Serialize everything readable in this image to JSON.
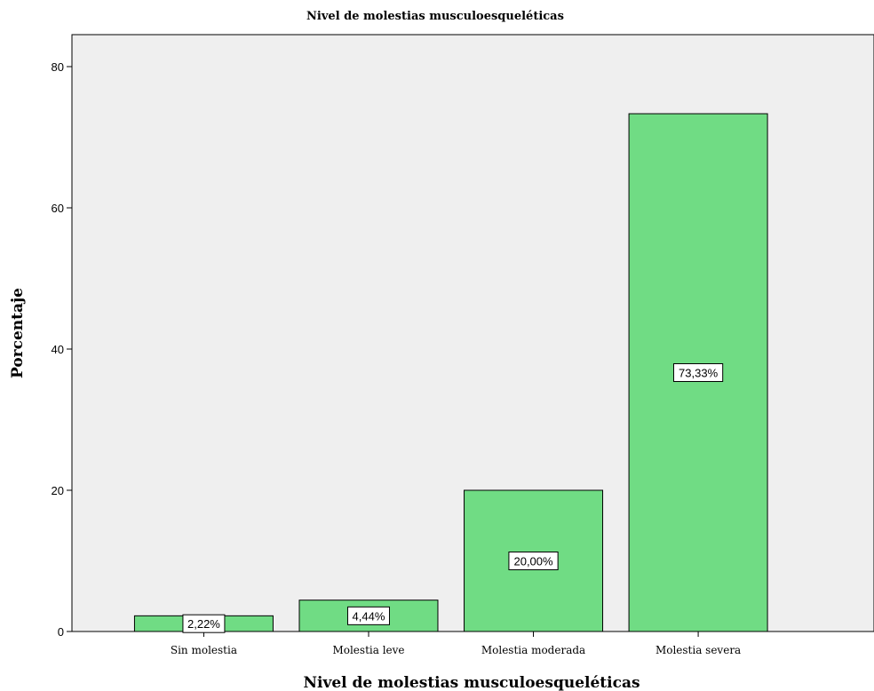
{
  "chart_data": {
    "type": "bar",
    "title": "Nivel de molestias musculoesqueléticas",
    "xlabel": "Nivel de molestias musculoesqueléticas",
    "ylabel": "Porcentaje",
    "categories": [
      "Sin molestia",
      "Molestia leve",
      "Molestia moderada",
      "Molestia severa"
    ],
    "values": [
      2.22,
      4.44,
      20.0,
      73.33
    ],
    "data_labels": [
      "2,22%",
      "4,44%",
      "20,00%",
      "73,33%"
    ],
    "ylim": [
      0,
      80
    ],
    "yticks": [
      0,
      20,
      40,
      60,
      80
    ],
    "ytick_labels": [
      "0",
      "20",
      "40",
      "60",
      "80"
    ],
    "grid": false,
    "legend": "none",
    "colors": {
      "bar_fill": "#70dc84",
      "bar_stroke": "#000000",
      "plot_background": "#efefef",
      "label_box": "#ffffff"
    }
  }
}
